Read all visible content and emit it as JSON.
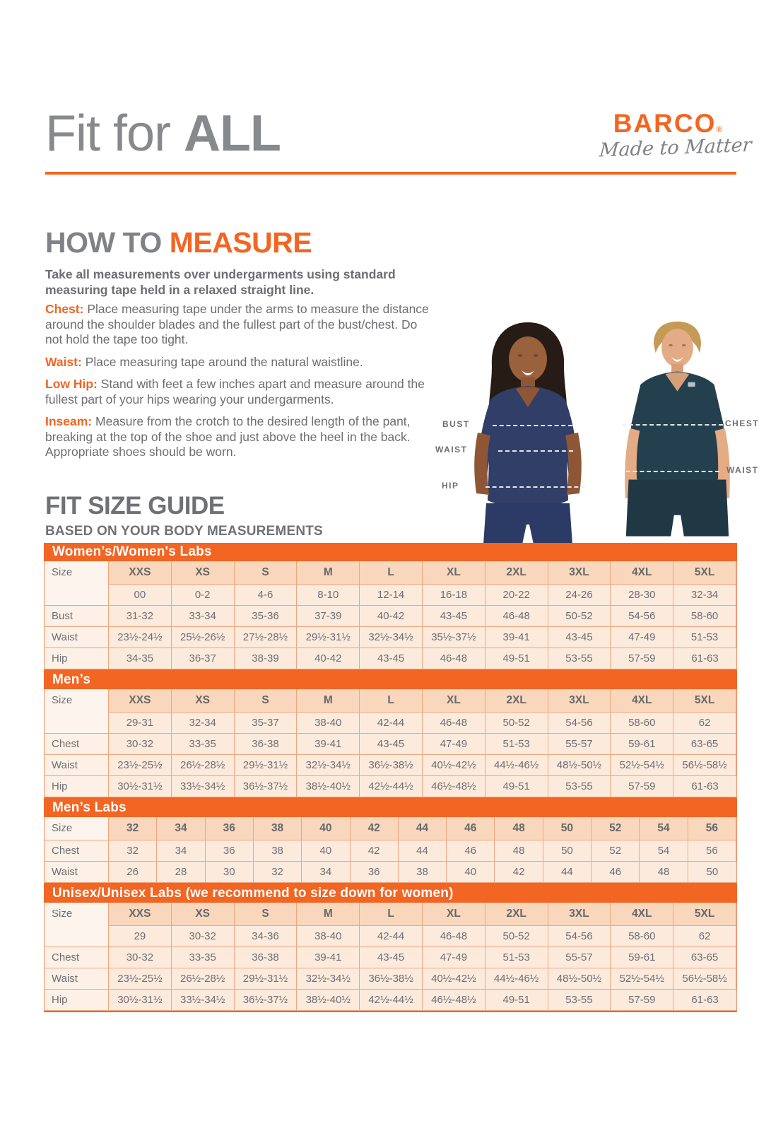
{
  "header": {
    "title_regular": "Fit for ",
    "title_bold": "ALL",
    "brand": "BARCO",
    "brand_reg": "®",
    "tagline": "Made to Matter"
  },
  "how_to_measure": {
    "heading_gray": "HOW TO ",
    "heading_orange": "MEASURE",
    "intro": "Take all measurements over undergarments using standard measuring tape held in a relaxed straight line.",
    "steps": [
      {
        "label": "Chest:",
        "text": "Place measuring tape under the arms to measure the distance around the shoulder blades and the fullest part of the bust/chest. Do not hold the tape too tight."
      },
      {
        "label": "Waist:",
        "text": "Place measuring tape around the natural waistline."
      },
      {
        "label": "Low Hip:",
        "text": "Stand with feet a few inches apart and measure around the fullest part of your hips wearing your undergarments."
      },
      {
        "label": "Inseam:",
        "text": "Measure from the crotch to the desired length of the pant, breaking at the top of the shoe and just above the heel in the back. Appropriate shoes should be worn."
      }
    ]
  },
  "figure_labels": {
    "bust": "BUST",
    "waist_left": "WAIST",
    "hip": "HIP",
    "chest": "CHEST",
    "waist_right": "WAIST"
  },
  "size_guide": {
    "heading": "FIT SIZE GUIDE",
    "subheading": "BASED ON YOUR BODY MEASUREMENTS",
    "tables": [
      {
        "title": "Women’s/Women's Labs",
        "size_label": "Size",
        "sizes": [
          "XXS",
          "XS",
          "S",
          "M",
          "L",
          "XL",
          "2XL",
          "3XL",
          "4XL",
          "5XL"
        ],
        "size_numbers": [
          "00",
          "0-2",
          "4-6",
          "8-10",
          "12-14",
          "16-18",
          "20-22",
          "24-26",
          "28-30",
          "32-34"
        ],
        "rows": [
          {
            "label": "Bust",
            "values": [
              "31-32",
              "33-34",
              "35-36",
              "37-39",
              "40-42",
              "43-45",
              "46-48",
              "50-52",
              "54-56",
              "58-60"
            ]
          },
          {
            "label": "Waist",
            "values": [
              "23½-24½",
              "25½-26½",
              "27½-28½",
              "29½-31½",
              "32½-34½",
              "35½-37½",
              "39-41",
              "43-45",
              "47-49",
              "51-53"
            ]
          },
          {
            "label": "Hip",
            "values": [
              "34-35",
              "36-37",
              "38-39",
              "40-42",
              "43-45",
              "46-48",
              "49-51",
              "53-55",
              "57-59",
              "61-63"
            ]
          }
        ]
      },
      {
        "title": "Men’s",
        "size_label": "Size",
        "sizes": [
          "XXS",
          "XS",
          "S",
          "M",
          "L",
          "XL",
          "2XL",
          "3XL",
          "4XL",
          "5XL"
        ],
        "size_numbers": [
          "29-31",
          "32-34",
          "35-37",
          "38-40",
          "42-44",
          "46-48",
          "50-52",
          "54-56",
          "58-60",
          "62"
        ],
        "rows": [
          {
            "label": "Chest",
            "values": [
              "30-32",
              "33-35",
              "36-38",
              "39-41",
              "43-45",
              "47-49",
              "51-53",
              "55-57",
              "59-61",
              "63-65"
            ]
          },
          {
            "label": "Waist",
            "values": [
              "23½-25½",
              "26½-28½",
              "29½-31½",
              "32½-34½",
              "36½-38½",
              "40½-42½",
              "44½-46½",
              "48½-50½",
              "52½-54½",
              "56½-58½"
            ]
          },
          {
            "label": "Hip",
            "values": [
              "30½-31½",
              "33½-34½",
              "36½-37½",
              "38½-40½",
              "42½-44½",
              "46½-48½",
              "49-51",
              "53-55",
              "57-59",
              "61-63"
            ]
          }
        ]
      },
      {
        "title": "Men’s Labs",
        "size_label": "Size",
        "sizes": [
          "32",
          "34",
          "36",
          "38",
          "40",
          "42",
          "44",
          "46",
          "48",
          "50",
          "52",
          "54",
          "56"
        ],
        "rows": [
          {
            "label": "Chest",
            "values": [
              "32",
              "34",
              "36",
              "38",
              "40",
              "42",
              "44",
              "46",
              "48",
              "50",
              "52",
              "54",
              "56"
            ]
          },
          {
            "label": "Waist",
            "values": [
              "26",
              "28",
              "30",
              "32",
              "34",
              "36",
              "38",
              "40",
              "42",
              "44",
              "46",
              "48",
              "50"
            ]
          }
        ]
      },
      {
        "title": "Unisex/Unisex Labs (we recommend to size down for women)",
        "size_label": "Size",
        "sizes": [
          "XXS",
          "XS",
          "S",
          "M",
          "L",
          "XL",
          "2XL",
          "3XL",
          "4XL",
          "5XL"
        ],
        "size_numbers": [
          "29",
          "30-32",
          "34-36",
          "38-40",
          "42-44",
          "46-48",
          "50-52",
          "54-56",
          "58-60",
          "62"
        ],
        "rows": [
          {
            "label": "Chest",
            "values": [
              "30-32",
              "33-35",
              "36-38",
              "39-41",
              "43-45",
              "47-49",
              "51-53",
              "55-57",
              "59-61",
              "63-65"
            ]
          },
          {
            "label": "Waist",
            "values": [
              "23½-25½",
              "26½-28½",
              "29½-31½",
              "32½-34½",
              "36½-38½",
              "40½-42½",
              "44½-46½",
              "48½-50½",
              "52½-54½",
              "56½-58½"
            ]
          },
          {
            "label": "Hip",
            "values": [
              "30½-31½",
              "33½-34½",
              "36½-37½",
              "38½-40½",
              "42½-44½",
              "46½-48½",
              "49-51",
              "53-55",
              "57-59",
              "61-63"
            ]
          }
        ]
      }
    ]
  },
  "colors": {
    "accent_orange": "#f26522",
    "heading_gray": "#808285",
    "text_gray": "#6d6e71",
    "peach_header": "#f9d7bd",
    "peach_light": "#fcebdd",
    "woman_scrub_navy": "#303e68",
    "man_scrub_teal": "#24404f"
  }
}
